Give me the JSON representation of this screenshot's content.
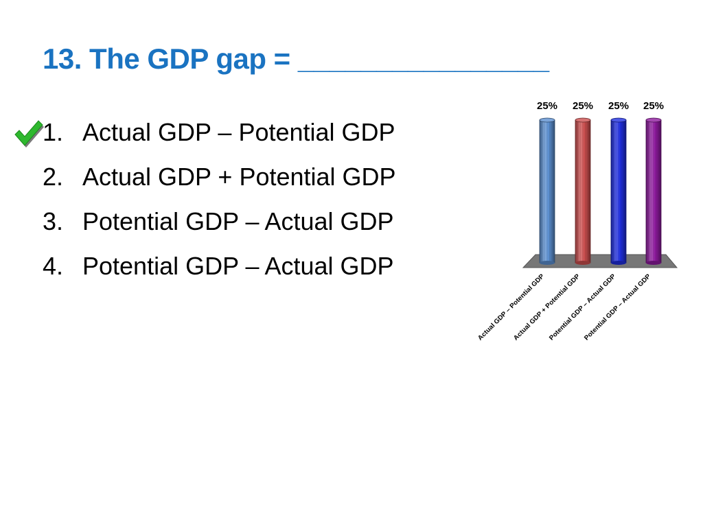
{
  "question": {
    "title": "13. The GDP gap = ________________"
  },
  "options": [
    {
      "number": "1.",
      "text": "Actual GDP – Potential GDP",
      "correct": true
    },
    {
      "number": "2.",
      "text": "Actual GDP + Potential GDP",
      "correct": false
    },
    {
      "number": "3.",
      "text": "Potential GDP – Actual GDP",
      "correct": false
    },
    {
      "number": "4.",
      "text": "Potential GDP – Actual GDP",
      "correct": false
    }
  ],
  "icons": {
    "correct_marker": "checkmark-icon"
  },
  "colors": {
    "title": "#1a73c1",
    "check": "#2eb82e"
  },
  "chart_data": {
    "type": "bar",
    "categories": [
      "Actual GDP – Potential GDP",
      "Actual GDP + Potential GDP",
      "Potential GDP – Actual GDP",
      "Potential GDP – Actual GDP"
    ],
    "values": [
      25,
      25,
      25,
      25
    ],
    "data_labels": [
      "25%",
      "25%",
      "25%",
      "25%"
    ],
    "colors": [
      "#5b8fd0",
      "#cc4f4f",
      "#1f2ee0",
      "#8e1a9e"
    ],
    "ylim": [
      0,
      25
    ],
    "grid": false,
    "legend": "none"
  }
}
